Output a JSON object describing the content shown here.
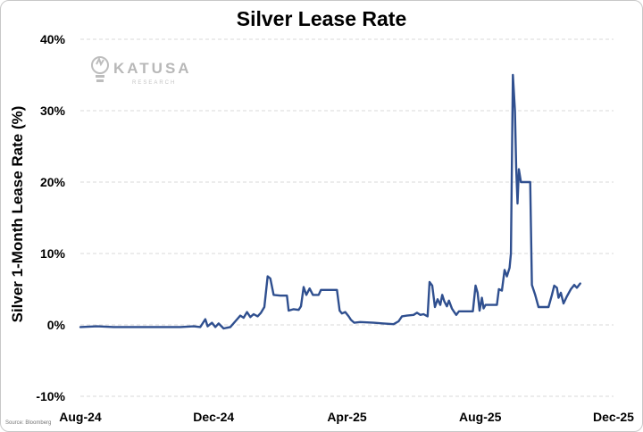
{
  "chart_data": {
    "type": "line",
    "title": "Silver Lease Rate",
    "xlabel": "",
    "ylabel": "Silver 1-Month Lease Rate (%)",
    "ylim": [
      -10,
      40
    ],
    "yticks": [
      -10,
      0,
      10,
      20,
      30,
      40
    ],
    "ytick_labels": [
      "-10%",
      "0%",
      "10%",
      "20%",
      "30%",
      "40%"
    ],
    "xlim": [
      0,
      16
    ],
    "xticks": [
      0,
      4,
      8,
      12,
      16
    ],
    "xtick_labels": [
      "Aug-24",
      "Dec-24",
      "Apr-25",
      "Aug-25",
      "Dec-25"
    ],
    "grid": true,
    "series": [
      {
        "name": "Silver 1-Month Lease Rate",
        "color": "#2f4f8f",
        "points": [
          [
            0.0,
            -0.3
          ],
          [
            0.5,
            -0.2
          ],
          [
            1.0,
            -0.3
          ],
          [
            2.0,
            -0.3
          ],
          [
            3.0,
            -0.3
          ],
          [
            3.4,
            -0.2
          ],
          [
            3.6,
            -0.3
          ],
          [
            3.75,
            0.8
          ],
          [
            3.82,
            -0.2
          ],
          [
            3.95,
            0.3
          ],
          [
            4.05,
            -0.3
          ],
          [
            4.15,
            0.2
          ],
          [
            4.3,
            -0.5
          ],
          [
            4.5,
            -0.3
          ],
          [
            4.65,
            0.5
          ],
          [
            4.8,
            1.3
          ],
          [
            4.9,
            1.0
          ],
          [
            5.0,
            1.8
          ],
          [
            5.1,
            1.1
          ],
          [
            5.2,
            1.5
          ],
          [
            5.32,
            1.2
          ],
          [
            5.42,
            1.7
          ],
          [
            5.52,
            2.5
          ],
          [
            5.62,
            6.8
          ],
          [
            5.7,
            6.5
          ],
          [
            5.8,
            4.2
          ],
          [
            6.0,
            4.1
          ],
          [
            6.2,
            4.1
          ],
          [
            6.25,
            2.0
          ],
          [
            6.4,
            2.2
          ],
          [
            6.55,
            2.1
          ],
          [
            6.62,
            2.6
          ],
          [
            6.7,
            5.3
          ],
          [
            6.78,
            4.2
          ],
          [
            6.88,
            5.1
          ],
          [
            6.98,
            4.2
          ],
          [
            7.15,
            4.2
          ],
          [
            7.22,
            4.9
          ],
          [
            7.4,
            4.9
          ],
          [
            7.7,
            4.9
          ],
          [
            7.78,
            2.0
          ],
          [
            7.85,
            1.6
          ],
          [
            7.95,
            1.8
          ],
          [
            8.05,
            1.2
          ],
          [
            8.12,
            0.7
          ],
          [
            8.22,
            0.3
          ],
          [
            8.4,
            0.4
          ],
          [
            8.8,
            0.3
          ],
          [
            9.1,
            0.2
          ],
          [
            9.4,
            0.1
          ],
          [
            9.55,
            0.5
          ],
          [
            9.65,
            1.2
          ],
          [
            9.8,
            1.3
          ],
          [
            10.0,
            1.4
          ],
          [
            10.1,
            1.7
          ],
          [
            10.2,
            1.4
          ],
          [
            10.3,
            1.5
          ],
          [
            10.42,
            1.2
          ],
          [
            10.48,
            6.0
          ],
          [
            10.56,
            5.5
          ],
          [
            10.64,
            2.5
          ],
          [
            10.72,
            3.6
          ],
          [
            10.8,
            2.8
          ],
          [
            10.86,
            4.2
          ],
          [
            10.92,
            3.3
          ],
          [
            11.0,
            2.6
          ],
          [
            11.06,
            3.4
          ],
          [
            11.15,
            2.3
          ],
          [
            11.22,
            1.8
          ],
          [
            11.28,
            1.4
          ],
          [
            11.36,
            1.9
          ],
          [
            11.6,
            1.9
          ],
          [
            11.78,
            1.9
          ],
          [
            11.86,
            5.5
          ],
          [
            11.92,
            4.5
          ],
          [
            11.98,
            2.0
          ],
          [
            12.05,
            3.8
          ],
          [
            12.1,
            2.3
          ],
          [
            12.16,
            2.8
          ],
          [
            12.5,
            2.8
          ],
          [
            12.56,
            5.0
          ],
          [
            12.65,
            4.8
          ],
          [
            12.73,
            7.7
          ],
          [
            12.8,
            6.8
          ],
          [
            12.88,
            8.0
          ],
          [
            12.92,
            10.0
          ],
          [
            12.98,
            35.0
          ],
          [
            13.04,
            30.0
          ],
          [
            13.08,
            22.0
          ],
          [
            13.12,
            17.0
          ],
          [
            13.16,
            21.8
          ],
          [
            13.22,
            20.0
          ],
          [
            13.5,
            20.0
          ],
          [
            13.55,
            5.6
          ],
          [
            13.65,
            4.2
          ],
          [
            13.75,
            2.5
          ],
          [
            14.05,
            2.5
          ],
          [
            14.15,
            4.2
          ],
          [
            14.22,
            5.5
          ],
          [
            14.3,
            5.2
          ],
          [
            14.35,
            3.8
          ],
          [
            14.42,
            4.5
          ],
          [
            14.5,
            3.0
          ],
          [
            14.6,
            4.0
          ],
          [
            14.72,
            5.0
          ],
          [
            14.82,
            5.6
          ],
          [
            14.9,
            5.2
          ],
          [
            15.0,
            5.8
          ]
        ]
      }
    ]
  },
  "watermark": {
    "brand": "KATUSA",
    "subtitle": "RESEARCH"
  },
  "source_note": "Source: Bloomberg"
}
